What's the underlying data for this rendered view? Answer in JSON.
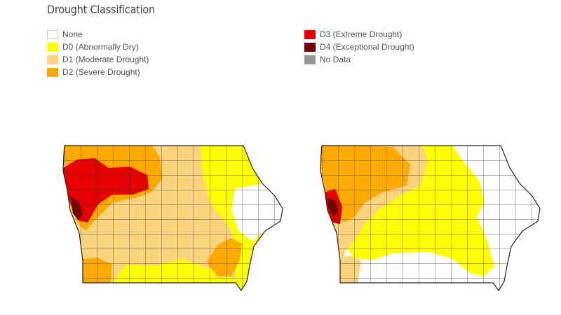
{
  "title": "Drought Classification",
  "legend": [
    {
      "label": "None",
      "color": "#ffffff"
    },
    {
      "label": "D0 (Abnormally Dry)",
      "color": "#ffff00"
    },
    {
      "label": "D1 (Moderate Drought)",
      "color": "#fcd37f"
    },
    {
      "label": "D2 (Severe Drought)",
      "color": "#ffaa00"
    },
    {
      "label": "D3 (Extreme Drought)",
      "color": "#e60000"
    },
    {
      "label": "D4 (Exceptional Drought)",
      "color": "#730000"
    },
    {
      "label": "No Data",
      "color": "#999999"
    }
  ],
  "maps": [
    {
      "name": "left-map",
      "dominant_category": "D1"
    },
    {
      "name": "right-map",
      "dominant_category": "D0"
    }
  ]
}
